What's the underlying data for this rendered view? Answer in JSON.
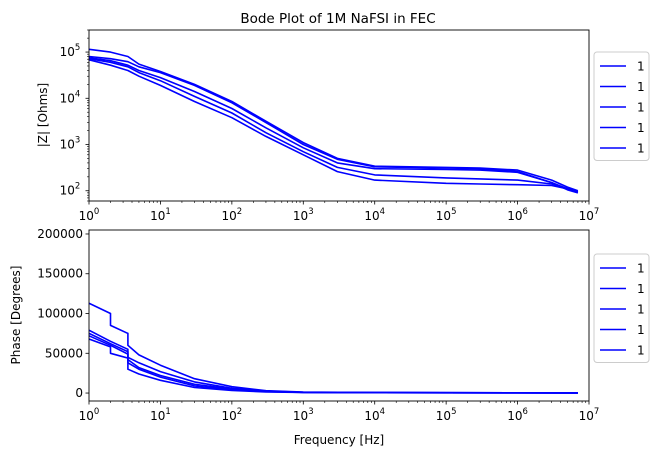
{
  "chart_data": [
    {
      "type": "line",
      "title": "Bode Plot of 1M NaFSI in FEC",
      "xlabel": "",
      "ylabel": "|Z| [Ohms]",
      "xscale": "log",
      "yscale": "log",
      "xlim": [
        1,
        10000000
      ],
      "ylim": [
        60,
        300000
      ],
      "grid": false,
      "legend_position": "outside-right",
      "color": "#0000ff",
      "x_ticks": [
        {
          "value": 1,
          "base": "10",
          "exp": "0"
        },
        {
          "value": 10,
          "base": "10",
          "exp": "1"
        },
        {
          "value": 100,
          "base": "10",
          "exp": "2"
        },
        {
          "value": 1000,
          "base": "10",
          "exp": "3"
        },
        {
          "value": 10000,
          "base": "10",
          "exp": "4"
        },
        {
          "value": 100000,
          "base": "10",
          "exp": "5"
        },
        {
          "value": 1000000,
          "base": "10",
          "exp": "6"
        },
        {
          "value": 10000000,
          "base": "10",
          "exp": "7"
        }
      ],
      "y_ticks": [
        {
          "value": 100,
          "base": "10",
          "exp": "2"
        },
        {
          "value": 1000,
          "base": "10",
          "exp": "3"
        },
        {
          "value": 10000,
          "base": "10",
          "exp": "4"
        },
        {
          "value": 100000,
          "base": "10",
          "exp": "5"
        }
      ],
      "series": [
        {
          "name": "1",
          "x": [
            1,
            2,
            3.5,
            5,
            10,
            30,
            100,
            300,
            1000,
            3000,
            10000,
            100000,
            300000,
            1000000,
            3000000,
            5000000,
            7000000
          ],
          "y": [
            115000,
            100000,
            80000,
            55000,
            38000,
            20000,
            8500,
            3200,
            1100,
            500,
            340,
            320,
            310,
            280,
            170,
            120,
            100
          ]
        },
        {
          "name": "1",
          "x": [
            1,
            2,
            3.5,
            5,
            10,
            30,
            100,
            300,
            1000,
            3000,
            10000,
            100000,
            300000,
            1000000,
            3000000,
            5000000,
            7000000
          ],
          "y": [
            80000,
            72000,
            62000,
            48000,
            36000,
            19000,
            8000,
            3000,
            1000,
            480,
            330,
            310,
            300,
            260,
            150,
            110,
            95
          ]
        },
        {
          "name": "1",
          "x": [
            1,
            2,
            3.5,
            5,
            10,
            30,
            100,
            300,
            1000,
            3000,
            10000,
            100000,
            300000,
            1000000,
            3000000,
            5000000,
            7000000
          ],
          "y": [
            75000,
            65000,
            52000,
            40000,
            28000,
            14000,
            6000,
            2300,
            850,
            400,
            300,
            290,
            280,
            250,
            150,
            105,
            90
          ]
        },
        {
          "name": "1",
          "x": [
            1,
            2,
            3.5,
            5,
            10,
            30,
            100,
            300,
            1000,
            3000,
            10000,
            100000,
            300000,
            1000000,
            3000000,
            5000000,
            7000000
          ],
          "y": [
            72000,
            60000,
            48000,
            36000,
            24000,
            11000,
            4800,
            1800,
            700,
            320,
            220,
            190,
            180,
            170,
            140,
            110,
            95
          ]
        },
        {
          "name": "1",
          "x": [
            1,
            2,
            3.5,
            5,
            10,
            30,
            100,
            300,
            1000,
            3000,
            10000,
            100000,
            300000,
            1000000,
            3000000,
            5000000,
            7000000
          ],
          "y": [
            68000,
            52000,
            40000,
            30000,
            19000,
            8500,
            3800,
            1500,
            600,
            260,
            170,
            145,
            140,
            135,
            130,
            110,
            95
          ]
        }
      ]
    },
    {
      "type": "line",
      "title": "",
      "xlabel": "Frequency [Hz]",
      "ylabel": "Phase [Degrees]",
      "xscale": "log",
      "yscale": "linear",
      "xlim": [
        1,
        10000000
      ],
      "ylim": [
        -10000,
        205000
      ],
      "grid": false,
      "legend_position": "outside-right",
      "color": "#0000ff",
      "x_ticks": [
        {
          "value": 1,
          "base": "10",
          "exp": "0"
        },
        {
          "value": 10,
          "base": "10",
          "exp": "1"
        },
        {
          "value": 100,
          "base": "10",
          "exp": "2"
        },
        {
          "value": 1000,
          "base": "10",
          "exp": "3"
        },
        {
          "value": 10000,
          "base": "10",
          "exp": "4"
        },
        {
          "value": 100000,
          "base": "10",
          "exp": "5"
        },
        {
          "value": 1000000,
          "base": "10",
          "exp": "6"
        },
        {
          "value": 10000000,
          "base": "10",
          "exp": "7"
        }
      ],
      "y_ticks": [
        {
          "value": 0,
          "label": "0"
        },
        {
          "value": 50000,
          "label": "50000"
        },
        {
          "value": 100000,
          "label": "100000"
        },
        {
          "value": 150000,
          "label": "150000"
        },
        {
          "value": 200000,
          "label": "200000"
        }
      ],
      "series": [
        {
          "name": "1",
          "x": [
            1,
            2,
            2,
            3.5,
            3.5,
            5,
            10,
            30,
            100,
            300,
            1000,
            10000,
            100000,
            1000000,
            7000000
          ],
          "y": [
            113000,
            100000,
            85000,
            75000,
            60000,
            48000,
            35000,
            18000,
            8000,
            3000,
            1200,
            500,
            400,
            300,
            200
          ]
        },
        {
          "name": "1",
          "x": [
            1,
            2,
            3.5,
            3.5,
            5,
            10,
            30,
            100,
            300,
            1000,
            10000,
            100000,
            1000000,
            7000000
          ],
          "y": [
            79000,
            65000,
            55000,
            45000,
            38000,
            27000,
            14000,
            6000,
            2500,
            1000,
            500,
            400,
            300,
            200
          ]
        },
        {
          "name": "1",
          "x": [
            1,
            2,
            3.5,
            3.5,
            5,
            10,
            30,
            100,
            300,
            1000,
            10000,
            100000,
            1000000,
            7000000
          ],
          "y": [
            75000,
            62000,
            52000,
            42000,
            32000,
            22000,
            11000,
            5000,
            2200,
            900,
            500,
            400,
            300,
            200
          ]
        },
        {
          "name": "1",
          "x": [
            1,
            2,
            3.5,
            3.5,
            5,
            10,
            30,
            100,
            300,
            1000,
            10000,
            100000,
            1000000,
            7000000
          ],
          "y": [
            72000,
            60000,
            49000,
            38000,
            30000,
            20000,
            9000,
            4000,
            1800,
            800,
            450,
            350,
            250,
            200
          ]
        },
        {
          "name": "1",
          "x": [
            1,
            2,
            2,
            3.5,
            3.5,
            5,
            10,
            30,
            100,
            300,
            1000,
            10000,
            100000,
            1000000,
            7000000
          ],
          "y": [
            68000,
            58000,
            50000,
            44000,
            30000,
            24000,
            16000,
            7000,
            3200,
            1500,
            700,
            400,
            300,
            250,
            200
          ]
        }
      ]
    }
  ]
}
